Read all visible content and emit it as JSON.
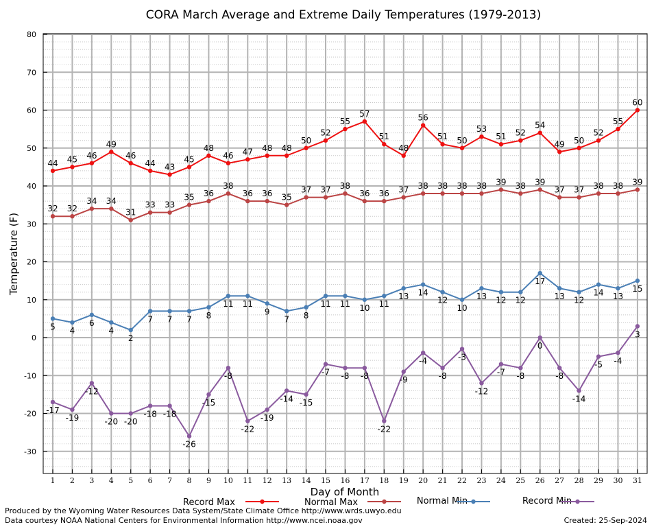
{
  "chart_data": {
    "type": "line",
    "title": "CORA March Average and Extreme Daily Temperatures (1979-2013)",
    "xlabel": "Day of Month",
    "ylabel": "Temperature (F)",
    "ylim": [
      -36,
      80
    ],
    "yticks": [
      -30,
      -20,
      -10,
      0,
      10,
      20,
      30,
      40,
      50,
      60,
      70,
      80
    ],
    "x": [
      1,
      2,
      3,
      4,
      5,
      6,
      7,
      8,
      9,
      10,
      11,
      12,
      13,
      14,
      15,
      16,
      17,
      18,
      19,
      20,
      21,
      22,
      23,
      24,
      25,
      26,
      27,
      28,
      29,
      30,
      31
    ],
    "grid": true,
    "legend_position": "bottom",
    "series": [
      {
        "name": "Record Max",
        "color": "#ee1111",
        "label_pos": "above",
        "values": [
          44,
          45,
          46,
          49,
          46,
          44,
          43,
          45,
          48,
          46,
          47,
          48,
          48,
          50,
          52,
          55,
          57,
          51,
          48,
          56,
          51,
          50,
          53,
          51,
          52,
          54,
          49,
          50,
          52,
          55,
          60
        ]
      },
      {
        "name": "Normal Max",
        "color": "#bb4444",
        "label_pos": "above",
        "values": [
          32,
          32,
          34,
          34,
          31,
          33,
          33,
          35,
          36,
          38,
          36,
          36,
          35,
          37,
          37,
          38,
          36,
          36,
          37,
          38,
          38,
          38,
          38,
          39,
          38,
          39,
          37,
          37,
          38,
          38,
          39
        ]
      },
      {
        "name": "Normal Min",
        "color": "#4a7fb5",
        "label_pos": "below",
        "values": [
          5,
          4,
          6,
          4,
          2,
          7,
          7,
          7,
          8,
          11,
          11,
          9,
          7,
          8,
          11,
          11,
          10,
          11,
          13,
          14,
          12,
          10,
          13,
          12,
          12,
          17,
          13,
          12,
          14,
          13,
          15
        ]
      },
      {
        "name": "Record Min",
        "color": "#8a5a9e",
        "label_pos": "below",
        "values": [
          -17,
          -19,
          -12,
          -20,
          -20,
          -18,
          -18,
          -26,
          -15,
          -8,
          -22,
          -19,
          -14,
          -15,
          -7,
          -8,
          -8,
          -22,
          -9,
          -4,
          -8,
          -3,
          -12,
          -7,
          -8,
          0,
          -8,
          -14,
          -5,
          -4,
          3
        ]
      }
    ]
  },
  "footer": {
    "produced_by": "Produced by the Wyoming Water Resources Data System/State Climate Office http://www.wrds.uwyo.edu",
    "courtesy": "Data courtesy NOAA National Centers for Environmental Information http://www.ncei.noaa.gov",
    "created": "Created:  25-Sep-2024"
  }
}
